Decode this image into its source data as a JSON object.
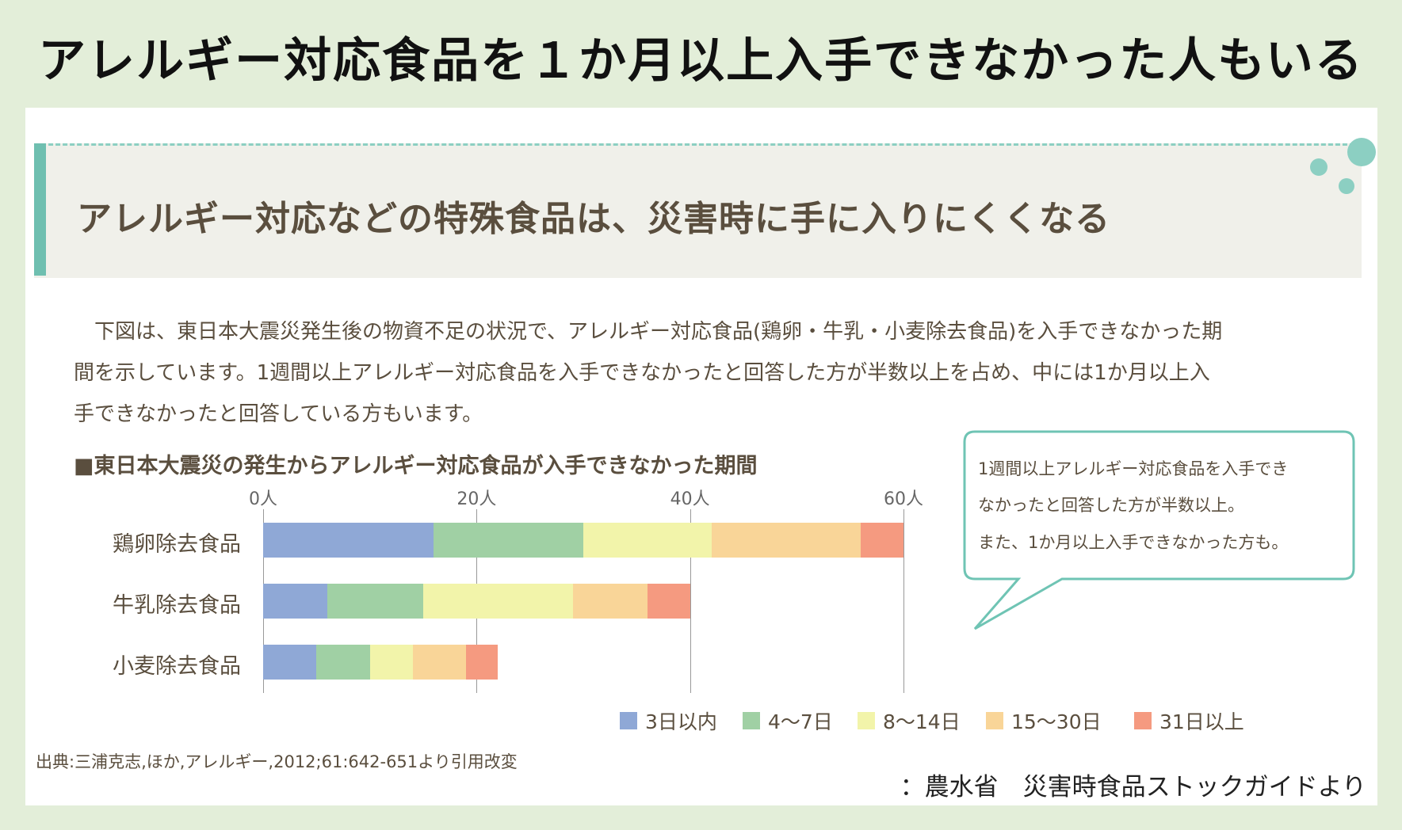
{
  "title": "アレルギー対応食品を１か月以上入手できなかった人もいる",
  "header": "アレルギー対応などの特殊食品は、災害時に手に入りにくくなる",
  "paragraph": [
    "　下図は、東日本大震災発生後の物資不足の状況で、アレルギー対応食品(鶏卵・牛乳・小麦除去食品)を入手できなかった期",
    "間を示しています。1週間以上アレルギー対応食品を入手できなかったと回答した方が半数以上を占め、中には1か月以上入",
    "手できなかったと回答している方もいます。"
  ],
  "callout": [
    "1週間以上アレルギー対応食品を入手でき",
    "なかったと回答した方が半数以上。",
    "また、1か月以上入手できなかった方も。"
  ],
  "source": "出典:三浦克志,ほか,アレルギー,2012;61:642-651より引用改変",
  "credit": "：農水省　災害時食品ストックガイドより",
  "chart_data": {
    "type": "bar",
    "orientation": "horizontal-stacked",
    "title": "■東日本大震災の発生からアレルギー対応食品が入手できなかった期間",
    "categories": [
      "鶏卵除去食品",
      "牛乳除去食品",
      "小麦除去食品"
    ],
    "xlim": [
      0,
      60
    ],
    "ticks": [
      {
        "v": 0,
        "label": "0人"
      },
      {
        "v": 20,
        "label": "20人"
      },
      {
        "v": 40,
        "label": "40人"
      },
      {
        "v": 60,
        "label": "60人"
      }
    ],
    "series": [
      {
        "name": "3日以内",
        "color": "#8fa8d6",
        "values": [
          16,
          6,
          5
        ]
      },
      {
        "name": "4〜7日",
        "color": "#a0d0a4",
        "values": [
          14,
          9,
          5
        ]
      },
      {
        "name": "8〜14日",
        "color": "#f2f4aa",
        "values": [
          12,
          14,
          4
        ]
      },
      {
        "name": "15〜30日",
        "color": "#f9d598",
        "values": [
          14,
          7,
          5
        ]
      },
      {
        "name": "31日以上",
        "color": "#f59a80",
        "values": [
          4,
          4,
          3
        ]
      }
    ]
  }
}
